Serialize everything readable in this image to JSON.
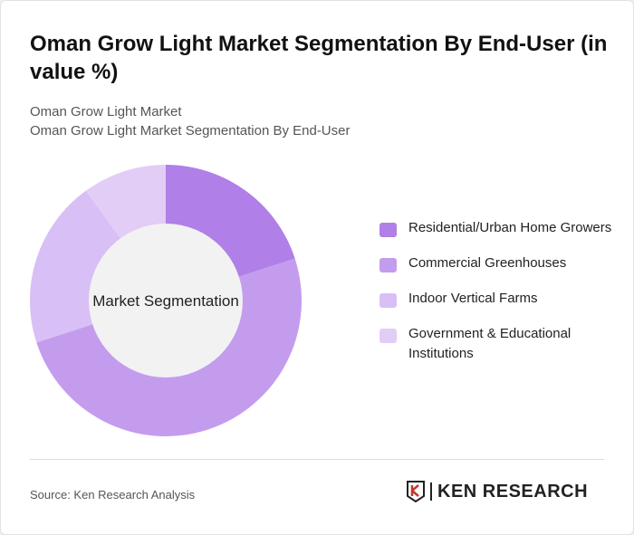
{
  "title": "Oman Grow Light Market Segmentation By End-User (in value %)",
  "subtitle1": "Oman Grow Light Market",
  "subtitle2": "Oman Grow Light Market Segmentation By End-User",
  "source": "Source: Ken Research Analysis",
  "logo_text": "KEN RESEARCH",
  "chart_data": {
    "type": "pie",
    "donut": true,
    "center_label": "Market Segmentation",
    "legend_position": "right",
    "categories": [
      "Residential/Urban Home Growers",
      "Commercial Greenhouses",
      "Indoor Vertical Farms",
      "Government & Educational Institutions"
    ],
    "values": [
      20,
      50,
      20,
      10
    ],
    "colors": [
      "#b07fe8",
      "#c49cee",
      "#d8bff5",
      "#e2cdf6"
    ]
  }
}
